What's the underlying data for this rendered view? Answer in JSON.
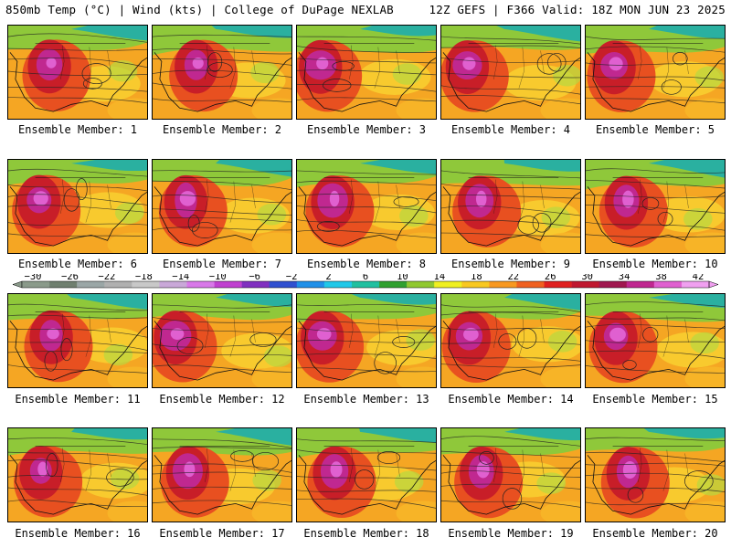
{
  "header": {
    "left": "850mb Temp (°C) | Wind (kts) | College of DuPage NEXLAB",
    "right": "12Z GEFS | F366 Valid: 18Z MON JUN 23 2025"
  },
  "panel_label_prefix": "Ensemble Member:",
  "members": [
    {
      "id": 1,
      "label": "Ensemble Member: 1"
    },
    {
      "id": 2,
      "label": "Ensemble Member: 2"
    },
    {
      "id": 3,
      "label": "Ensemble Member: 3"
    },
    {
      "id": 4,
      "label": "Ensemble Member: 4"
    },
    {
      "id": 5,
      "label": "Ensemble Member: 5"
    },
    {
      "id": 6,
      "label": "Ensemble Member: 6"
    },
    {
      "id": 7,
      "label": "Ensemble Member: 7"
    },
    {
      "id": 8,
      "label": "Ensemble Member: 8"
    },
    {
      "id": 9,
      "label": "Ensemble Member: 9"
    },
    {
      "id": 10,
      "label": "Ensemble Member: 10"
    },
    {
      "id": 11,
      "label": "Ensemble Member: 11"
    },
    {
      "id": 12,
      "label": "Ensemble Member: 12"
    },
    {
      "id": 13,
      "label": "Ensemble Member: 13"
    },
    {
      "id": 14,
      "label": "Ensemble Member: 14"
    },
    {
      "id": 15,
      "label": "Ensemble Member: 15"
    },
    {
      "id": 16,
      "label": "Ensemble Member: 16"
    },
    {
      "id": 17,
      "label": "Ensemble Member: 17"
    },
    {
      "id": 18,
      "label": "Ensemble Member: 18"
    },
    {
      "id": 19,
      "label": "Ensemble Member: 19"
    },
    {
      "id": 20,
      "label": "Ensemble Member: 20"
    }
  ],
  "colorbar": {
    "tick_labels": [
      "-30",
      "-26",
      "-22",
      "-18",
      "-14",
      "-10",
      "-6",
      "-2",
      "2",
      "6",
      "10",
      "14",
      "18",
      "22",
      "26",
      "30",
      "34",
      "38",
      "42"
    ],
    "colors": [
      "#8a9a8a",
      "#6f7f6f",
      "#9aa6a6",
      "#b0b0b0",
      "#c8c8c8",
      "#c9a8d8",
      "#d878e8",
      "#c040d0",
      "#8030c0",
      "#3050d0",
      "#2090e8",
      "#20c8e8",
      "#20c0a0",
      "#30a030",
      "#90c830",
      "#f0f020",
      "#f8c820",
      "#f89820",
      "#f06020",
      "#e02020",
      "#c01830",
      "#a01850",
      "#c02890",
      "#e060d0",
      "#f0a0f0"
    ]
  }
}
